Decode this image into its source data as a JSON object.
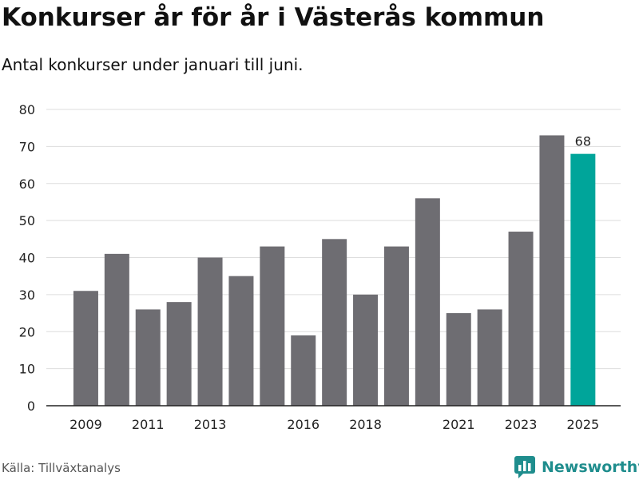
{
  "title": "Konkurser år för år i Västerås kommun",
  "subtitle": "Antal konkurser under januari till juni.",
  "source": "Källa: Tillväxtanalys",
  "brand": {
    "name": "Newsworthy",
    "icon": "bar-chart-logo-icon"
  },
  "colors": {
    "bar": "#6e6d72",
    "highlight": "#00a59a",
    "grid": "#dddddd",
    "axis": "#222222",
    "brand": "#1f8d8d"
  },
  "chart_data": {
    "type": "bar",
    "categories": [
      "2009",
      "2010",
      "2011",
      "2012",
      "2013",
      "2014",
      "2015",
      "2016",
      "2017",
      "2018",
      "2019",
      "2020",
      "2021",
      "2022",
      "2023",
      "2024",
      "2025"
    ],
    "values": [
      31,
      41,
      26,
      28,
      40,
      35,
      43,
      19,
      45,
      30,
      43,
      56,
      25,
      26,
      47,
      73,
      68
    ],
    "x_tick_labels": [
      "2009",
      "2011",
      "2013",
      "2016",
      "2018",
      "2021",
      "2023",
      "2025"
    ],
    "y_ticks": [
      0,
      10,
      20,
      30,
      40,
      50,
      60,
      70,
      80
    ],
    "ylim": [
      0,
      80
    ],
    "highlight_category": "2025",
    "data_labels": [
      {
        "category": "2025",
        "text": "68"
      }
    ],
    "grid": true,
    "xlabel": "",
    "ylabel": ""
  }
}
